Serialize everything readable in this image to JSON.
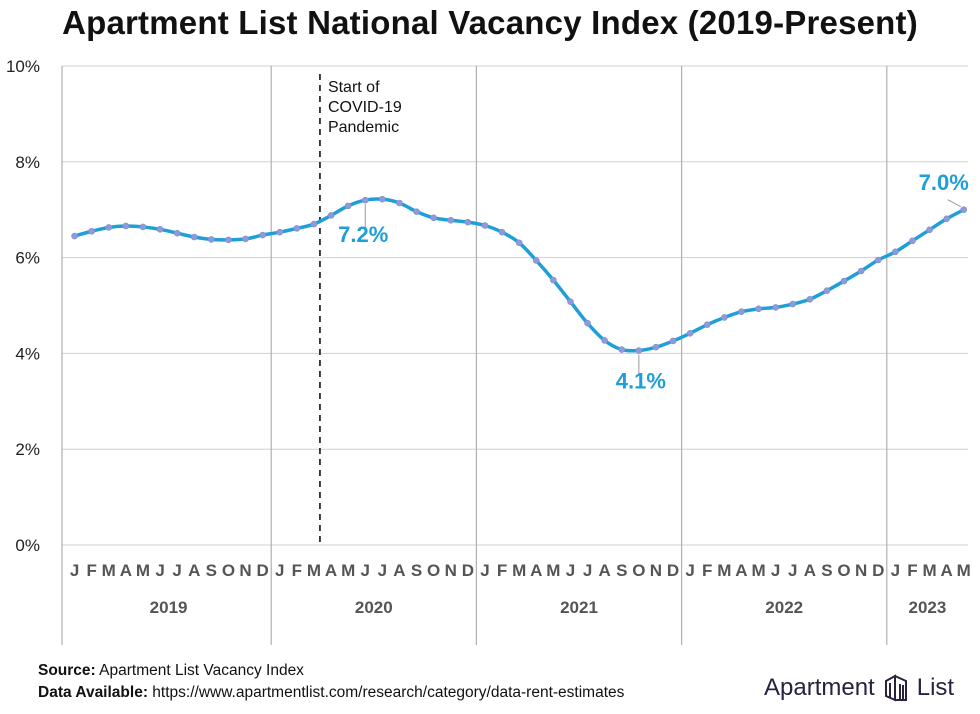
{
  "title": "Apartment List National Vacancy Index (2019-Present)",
  "chart_data": {
    "type": "line",
    "title": "Apartment List National Vacancy Index (2019-Present)",
    "xlabel": "",
    "ylabel": "",
    "ylim": [
      0,
      10
    ],
    "y_ticks": [
      "0%",
      "2%",
      "4%",
      "6%",
      "8%",
      "10%"
    ],
    "grid": "horizontal gridlines, vertical year separators",
    "years": [
      "2019",
      "2020",
      "2021",
      "2022",
      "2023"
    ],
    "month_letters": [
      "J",
      "F",
      "M",
      "A",
      "M",
      "J",
      "J",
      "A",
      "S",
      "O",
      "N",
      "D"
    ],
    "months_in_last_year": 5,
    "series": [
      {
        "color": "#1f9fd8",
        "x": [
          "2019-01",
          "2019-02",
          "2019-03",
          "2019-04",
          "2019-05",
          "2019-06",
          "2019-07",
          "2019-08",
          "2019-09",
          "2019-10",
          "2019-11",
          "2019-12",
          "2020-01",
          "2020-02",
          "2020-03",
          "2020-04",
          "2020-05",
          "2020-06",
          "2020-07",
          "2020-08",
          "2020-09",
          "2020-10",
          "2020-11",
          "2020-12",
          "2021-01",
          "2021-02",
          "2021-03",
          "2021-04",
          "2021-05",
          "2021-06",
          "2021-07",
          "2021-08",
          "2021-09",
          "2021-10",
          "2021-11",
          "2021-12",
          "2022-01",
          "2022-02",
          "2022-03",
          "2022-04",
          "2022-05",
          "2022-06",
          "2022-07",
          "2022-08",
          "2022-09",
          "2022-10",
          "2022-11",
          "2022-12",
          "2023-01",
          "2023-02",
          "2023-03",
          "2023-04",
          "2023-05"
        ],
        "values": [
          6.45,
          6.55,
          6.63,
          6.66,
          6.64,
          6.59,
          6.51,
          6.43,
          6.38,
          6.37,
          6.39,
          6.47,
          6.53,
          6.61,
          6.7,
          6.88,
          7.08,
          7.2,
          7.22,
          7.14,
          6.96,
          6.83,
          6.78,
          6.74,
          6.67,
          6.53,
          6.31,
          5.94,
          5.53,
          5.08,
          4.63,
          4.27,
          4.08,
          4.06,
          4.13,
          4.26,
          4.42,
          4.6,
          4.75,
          4.87,
          4.93,
          4.96,
          5.03,
          5.13,
          5.31,
          5.51,
          5.72,
          5.95,
          6.12,
          6.35,
          6.58,
          6.81,
          7.0
        ]
      }
    ],
    "annotations": [
      {
        "text": "7.2%",
        "x": "2020-06"
      },
      {
        "text": "4.1%",
        "x": "2021-10"
      },
      {
        "text": "7.0%",
        "x": "2023-05"
      }
    ],
    "event_marker": {
      "x": "2020-03",
      "label_lines": [
        "Start of",
        "COVID-19",
        "Pandemic"
      ]
    }
  },
  "footer": {
    "source_label": "Source:",
    "source_text": "Apartment List Vacancy Index",
    "data_label": "Data Available:",
    "data_text": "https://www.apartmentlist.com/research/category/data-rent-estimates"
  },
  "logo": {
    "word1": "Apartment",
    "word2": "List",
    "color": "#2a2140"
  }
}
